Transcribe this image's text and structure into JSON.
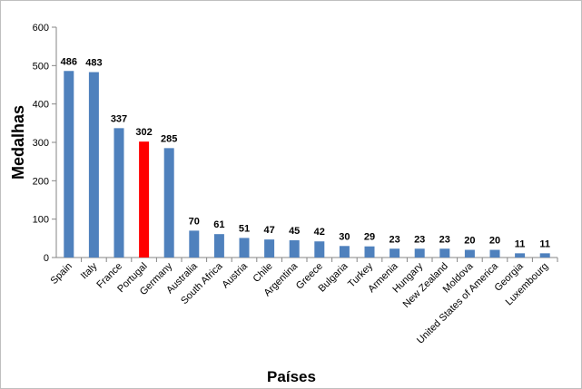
{
  "chart_data": {
    "type": "bar",
    "title": "",
    "xlabel": "Países",
    "ylabel": "Medalhas",
    "ylim": [
      0,
      600
    ],
    "yticks": [
      0,
      100,
      200,
      300,
      400,
      500,
      600
    ],
    "grid": false,
    "legend": "none",
    "categories": [
      "Spain",
      "Italy",
      "France",
      "Portugal",
      "Germany",
      "Australia",
      "South Africa",
      "Austria",
      "Chile",
      "Argentina",
      "Greece",
      "Bulgaria",
      "Turkey",
      "Armenia",
      "Hungary",
      "New Zealand",
      "Moldova",
      "United States of America",
      "Georgia",
      "Luxembourg"
    ],
    "values": [
      486,
      483,
      337,
      302,
      285,
      70,
      61,
      51,
      47,
      45,
      42,
      30,
      29,
      23,
      23,
      23,
      20,
      20,
      11,
      11
    ],
    "highlight_category": "Portugal",
    "colors": {
      "bar": "#4F81BD",
      "highlight_bar": "#FF0000",
      "highlight_label": "#FF0000",
      "axis": "#868686"
    }
  }
}
